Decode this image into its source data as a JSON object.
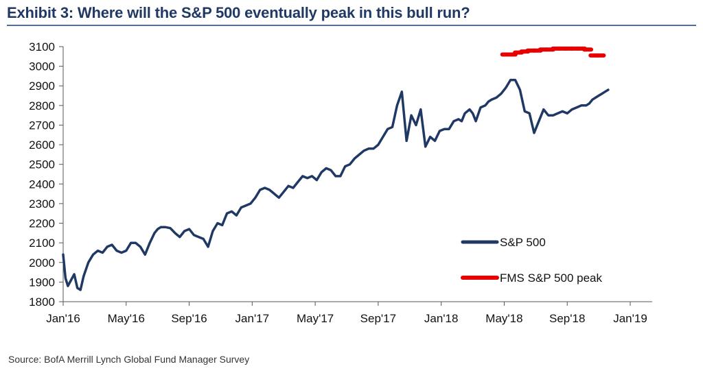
{
  "title": "Exhibit 3: Where will the S&P 500 eventually peak in this bull run?",
  "source": "Source:  BofA Merrill Lynch Global Fund Manager Survey",
  "colors": {
    "title": "#1f3864",
    "sp500": "#1f3864",
    "fms": "#e60000",
    "axis": "#555555"
  },
  "chart_data": {
    "type": "line",
    "title": "Exhibit 3: Where will the S&P 500 eventually peak in this bull run?",
    "xlabel": "",
    "ylabel": "",
    "ylim": [
      1800,
      3100
    ],
    "yticks": [
      1800,
      1900,
      2000,
      2100,
      2200,
      2300,
      2400,
      2500,
      2600,
      2700,
      2800,
      2900,
      3000,
      3100
    ],
    "xlim": [
      0,
      36
    ],
    "xticks": [
      {
        "x": 0,
        "label": "Jan'16"
      },
      {
        "x": 4,
        "label": "May'16"
      },
      {
        "x": 8,
        "label": "Sep'16"
      },
      {
        "x": 12,
        "label": "Jan'17"
      },
      {
        "x": 16,
        "label": "May'17"
      },
      {
        "x": 20,
        "label": "Sep'17"
      },
      {
        "x": 24,
        "label": "Jan'18"
      },
      {
        "x": 28,
        "label": "May'18"
      },
      {
        "x": 32,
        "label": "Sep'18"
      },
      {
        "x": 36,
        "label": "Jan'19"
      }
    ],
    "legend_position": "right",
    "series": [
      {
        "name": "S&P 500",
        "style": "solid",
        "x": [
          0,
          0.15,
          0.3,
          0.5,
          0.7,
          0.9,
          1.1,
          1.3,
          1.6,
          1.9,
          2.2,
          2.5,
          2.8,
          3.1,
          3.4,
          3.7,
          4.0,
          4.3,
          4.6,
          4.9,
          5.2,
          5.5,
          5.8,
          6.0,
          6.2,
          6.5,
          6.8,
          7.1,
          7.4,
          7.7,
          8.0,
          8.3,
          8.6,
          8.9,
          9.2,
          9.5,
          9.8,
          10.1,
          10.4,
          10.7,
          11.0,
          11.3,
          11.6,
          11.9,
          12.2,
          12.5,
          12.8,
          13.1,
          13.4,
          13.7,
          14.0,
          14.3,
          14.6,
          14.9,
          15.2,
          15.5,
          15.8,
          16.1,
          16.4,
          16.7,
          17.0,
          17.3,
          17.6,
          17.9,
          18.2,
          18.5,
          18.8,
          19.1,
          19.4,
          19.7,
          20.0,
          20.3,
          20.6,
          20.9,
          21.2,
          21.5,
          21.8,
          22.1,
          22.4,
          22.7,
          23.0,
          23.3,
          23.6,
          23.9,
          24.2,
          24.5,
          24.8,
          25.1,
          25.3,
          25.5,
          25.8,
          26.0,
          26.2,
          26.5,
          26.8,
          27.0,
          27.2,
          27.5,
          27.8,
          28.1,
          28.4,
          28.7,
          29.0,
          29.3,
          29.6,
          29.9,
          30.2,
          30.5,
          30.8,
          31.1,
          31.4,
          31.7,
          32.0,
          32.3,
          32.6,
          32.9,
          33.2,
          33.4,
          33.6,
          33.8,
          34.0,
          34.2,
          34.4,
          34.6
        ],
        "y": [
          2040,
          1920,
          1880,
          1910,
          1940,
          1870,
          1860,
          1930,
          2000,
          2040,
          2060,
          2050,
          2080,
          2090,
          2060,
          2050,
          2060,
          2100,
          2100,
          2080,
          2040,
          2100,
          2150,
          2170,
          2180,
          2180,
          2175,
          2150,
          2130,
          2160,
          2170,
          2140,
          2130,
          2120,
          2080,
          2160,
          2200,
          2190,
          2250,
          2260,
          2240,
          2280,
          2290,
          2300,
          2330,
          2370,
          2380,
          2370,
          2350,
          2330,
          2360,
          2390,
          2380,
          2410,
          2440,
          2430,
          2440,
          2420,
          2460,
          2480,
          2470,
          2440,
          2440,
          2490,
          2500,
          2530,
          2550,
          2570,
          2580,
          2580,
          2600,
          2640,
          2680,
          2690,
          2800,
          2870,
          2620,
          2750,
          2700,
          2780,
          2590,
          2640,
          2620,
          2670,
          2680,
          2680,
          2720,
          2730,
          2720,
          2760,
          2780,
          2760,
          2720,
          2790,
          2800,
          2820,
          2830,
          2840,
          2860,
          2890,
          2930,
          2930,
          2880,
          2770,
          2760,
          2660,
          2720,
          2780,
          2750,
          2750,
          2760,
          2770,
          2760,
          2780,
          2790,
          2800,
          2800,
          2810,
          2830,
          2840,
          2850,
          2860,
          2870,
          2880
        ]
      },
      {
        "name": "FMS S&P 500 peak",
        "style": "dashed",
        "x": [
          28.1,
          28.5,
          28.9,
          29.3,
          29.7,
          30.1,
          30.5,
          30.9,
          31.3,
          31.7,
          32.1,
          32.5,
          32.9,
          33.3,
          33.7,
          34.1
        ],
        "y": [
          3060,
          3060,
          3070,
          3075,
          3080,
          3080,
          3085,
          3085,
          3090,
          3090,
          3090,
          3090,
          3090,
          3085,
          3055,
          3055
        ]
      }
    ]
  }
}
